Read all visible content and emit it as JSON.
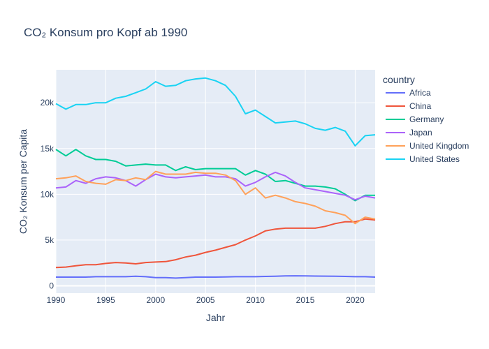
{
  "chart_data": {
    "type": "line",
    "title": "CO₂ Konsum pro Kopf ab 1990",
    "xlabel": "Jahr",
    "ylabel": "CO₂ Konsum per Capita",
    "xlim": [
      1990,
      2022
    ],
    "ylim": [
      -800,
      23600
    ],
    "xticks": [
      1990,
      1995,
      2000,
      2005,
      2010,
      2015,
      2020
    ],
    "xtick_labels": [
      "1990",
      "1995",
      "2000",
      "2005",
      "2010",
      "2015",
      "2020"
    ],
    "yticks": [
      0,
      5000,
      10000,
      15000,
      20000
    ],
    "ytick_labels": [
      "0",
      "5k",
      "10k",
      "15k",
      "20k"
    ],
    "grid": true,
    "legend": {
      "title": "country",
      "position": "right"
    },
    "x": [
      1990,
      1991,
      1992,
      1993,
      1994,
      1995,
      1996,
      1997,
      1998,
      1999,
      2000,
      2001,
      2002,
      2003,
      2004,
      2005,
      2006,
      2007,
      2008,
      2009,
      2010,
      2011,
      2012,
      2013,
      2014,
      2015,
      2016,
      2017,
      2018,
      2019,
      2020,
      2021,
      2022
    ],
    "series": [
      {
        "name": "Africa",
        "color": "#636efa",
        "values": [
          950,
          950,
          950,
          950,
          1000,
          1000,
          1000,
          1000,
          1050,
          1000,
          900,
          900,
          850,
          900,
          950,
          950,
          950,
          980,
          1000,
          1000,
          1000,
          1030,
          1050,
          1080,
          1100,
          1080,
          1070,
          1060,
          1050,
          1030,
          1000,
          1000,
          950
        ]
      },
      {
        "name": "China",
        "color": "#ef553b",
        "values": [
          2000,
          2050,
          2200,
          2300,
          2300,
          2450,
          2550,
          2500,
          2400,
          2550,
          2600,
          2650,
          2850,
          3150,
          3350,
          3650,
          3900,
          4200,
          4500,
          5000,
          5450,
          6000,
          6200,
          6300,
          6300,
          6300,
          6300,
          6500,
          6800,
          7000,
          7000,
          7300,
          7200
        ]
      },
      {
        "name": "Germany",
        "color": "#00cc96",
        "values": [
          14900,
          14200,
          14900,
          14200,
          13800,
          13800,
          13600,
          13100,
          13200,
          13300,
          13200,
          13200,
          12600,
          13000,
          12700,
          12800,
          12800,
          12800,
          12800,
          12100,
          12600,
          12200,
          11400,
          11500,
          11200,
          10900,
          10900,
          10800,
          10600,
          10000,
          9300,
          9900,
          9900
        ]
      },
      {
        "name": "Japan",
        "color": "#ab63fa",
        "values": [
          10700,
          10800,
          11500,
          11200,
          11700,
          11900,
          11800,
          11500,
          10900,
          11600,
          12200,
          11900,
          11800,
          11900,
          12000,
          12100,
          11900,
          11900,
          11700,
          10900,
          11300,
          11900,
          12400,
          12000,
          11300,
          10700,
          10500,
          10300,
          10100,
          9900,
          9400,
          9800,
          9600
        ]
      },
      {
        "name": "United Kingdom",
        "color": "#ffa15a",
        "values": [
          11700,
          11800,
          12000,
          11400,
          11200,
          11100,
          11600,
          11500,
          11800,
          11600,
          12500,
          12200,
          12200,
          12200,
          12400,
          12300,
          12300,
          12100,
          11500,
          10000,
          10700,
          9600,
          9900,
          9600,
          9200,
          9000,
          8700,
          8200,
          8000,
          7700,
          6800,
          7500,
          7300
        ]
      },
      {
        "name": "United States",
        "color": "#19d3f3",
        "values": [
          19900,
          19300,
          19800,
          19800,
          20000,
          20000,
          20500,
          20700,
          21100,
          21500,
          22300,
          21800,
          21900,
          22400,
          22600,
          22700,
          22400,
          21900,
          20700,
          18800,
          19200,
          18500,
          17800,
          17900,
          18000,
          17700,
          17200,
          17000,
          17300,
          16900,
          15300,
          16400,
          16500
        ]
      }
    ]
  }
}
